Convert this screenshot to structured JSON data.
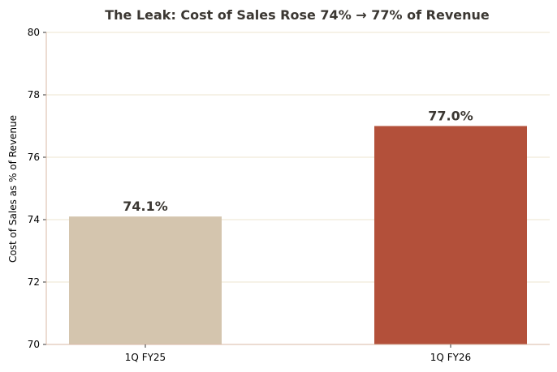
{
  "chart_data": {
    "type": "bar",
    "title": "The Leak: Cost of Sales Rose 74% → 77% of Revenue",
    "xlabel": "",
    "ylabel": "Cost of Sales as % of Revenue",
    "categories": [
      "1Q FY25",
      "1Q FY26"
    ],
    "values": [
      74.1,
      77.0
    ],
    "value_labels": [
      "74.1%",
      "77.0%"
    ],
    "bar_colors": [
      "#d4c5ae",
      "#b3503a"
    ],
    "ylim": [
      70,
      80
    ],
    "yticks": [
      70,
      72,
      74,
      76,
      78,
      80
    ],
    "ytick_labels": [
      "70",
      "72",
      "74",
      "76",
      "78",
      "80"
    ],
    "grid": "horizontal",
    "grid_color": "#ece6cf",
    "spine_color": "#d9b8a6",
    "legend": "none"
  }
}
